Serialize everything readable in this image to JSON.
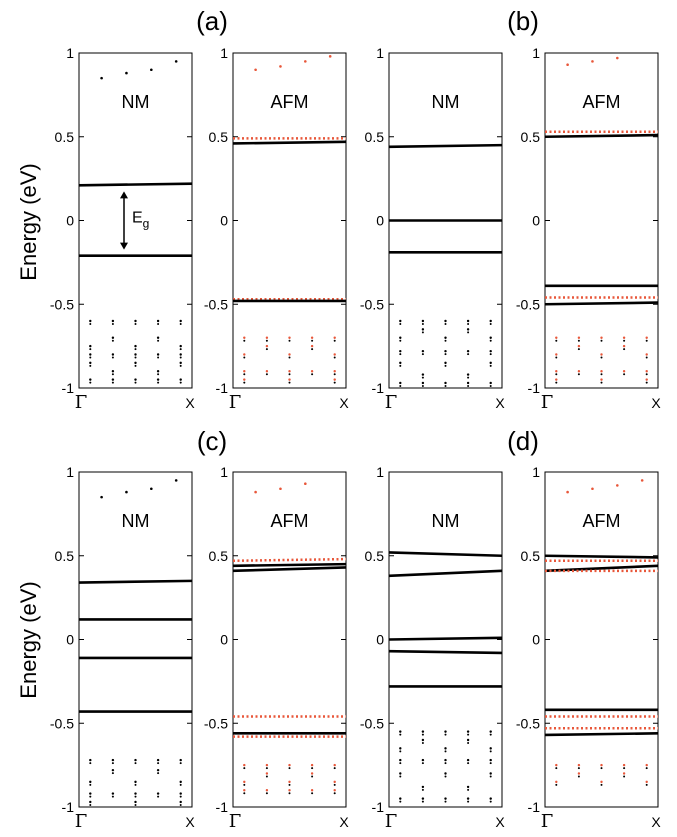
{
  "figure": {
    "ylabel": "Energy (eV)",
    "group_labels": [
      "(a)",
      "(b)",
      "(c)",
      "(d)"
    ],
    "gap_label_main": "E",
    "gap_label_sub": "g"
  },
  "chart_data": [
    {
      "type": "line",
      "group": "(a)",
      "title": "NM",
      "ylim": [
        -1,
        1
      ],
      "xticks": [
        "Γ",
        "X"
      ],
      "yticks": [
        "1",
        "0.5",
        "0",
        "-0.5",
        "-1"
      ],
      "bands": [
        {
          "y": [
            0.21,
            0.22
          ],
          "color": "#000000"
        },
        {
          "y": [
            -0.21,
            -0.21
          ],
          "color": "#000000"
        }
      ],
      "dots": {
        "kx": [
          0.1,
          0.3,
          0.5,
          0.7,
          0.9
        ],
        "y": [
          -0.6,
          -0.7,
          -0.75,
          -0.8,
          -0.85,
          -0.9,
          -0.95
        ],
        "top_y": [
          0.85,
          0.88,
          0.9,
          0.95
        ],
        "color": "#000000"
      },
      "annotation": {
        "text": "Eg",
        "from": 0.21,
        "to": -0.21
      }
    },
    {
      "type": "line",
      "group": "(a)",
      "title": "AFM",
      "ylim": [
        -1,
        1
      ],
      "xticks": [
        "Γ",
        "X"
      ],
      "yticks": [
        "1",
        "0.5",
        "0",
        "-0.5",
        "-1"
      ],
      "bands": [
        {
          "y": [
            0.49,
            0.49
          ],
          "color": "#e8573a",
          "style": "dotted"
        },
        {
          "y": [
            0.46,
            0.47
          ],
          "color": "#000000"
        },
        {
          "y": [
            -0.47,
            -0.47
          ],
          "color": "#e8573a",
          "style": "dotted"
        },
        {
          "y": [
            -0.48,
            -0.48
          ],
          "color": "#000000"
        }
      ],
      "dots": {
        "kx": [
          0.1,
          0.3,
          0.5,
          0.7,
          0.9
        ],
        "y": [
          -0.7,
          -0.75,
          -0.8,
          -0.9,
          -0.95
        ],
        "top_y": [
          0.9,
          0.92,
          0.95,
          0.98
        ],
        "color": "#e8573a"
      }
    },
    {
      "type": "line",
      "group": "(b)",
      "title": "NM",
      "ylim": [
        -1,
        1
      ],
      "xticks": [
        "Γ",
        "X"
      ],
      "yticks": [
        "1",
        "0.5",
        "0",
        "-0.5",
        "-1"
      ],
      "bands": [
        {
          "y": [
            0.44,
            0.45
          ],
          "color": "#000000"
        },
        {
          "y": [
            0.0,
            0.0
          ],
          "color": "#000000"
        },
        {
          "y": [
            -0.19,
            -0.19
          ],
          "color": "#000000"
        }
      ],
      "dots": {
        "kx": [
          0.1,
          0.3,
          0.5,
          0.7,
          0.9
        ],
        "y": [
          -0.6,
          -0.65,
          -0.7,
          -0.78,
          -0.85,
          -0.92,
          -0.97
        ],
        "top_y": [],
        "color": "#000000"
      }
    },
    {
      "type": "line",
      "group": "(b)",
      "title": "AFM",
      "ylim": [
        -1,
        1
      ],
      "xticks": [
        "Γ",
        "X"
      ],
      "yticks": [
        "1",
        "0.5",
        "0",
        "-0.5",
        "-1"
      ],
      "bands": [
        {
          "y": [
            0.53,
            0.53
          ],
          "color": "#e8573a",
          "style": "dotted"
        },
        {
          "y": [
            0.5,
            0.51
          ],
          "color": "#000000"
        },
        {
          "y": [
            -0.39,
            -0.39
          ],
          "color": "#000000"
        },
        {
          "y": [
            -0.46,
            -0.46
          ],
          "color": "#e8573a",
          "style": "dotted"
        },
        {
          "y": [
            -0.5,
            -0.49
          ],
          "color": "#000000"
        }
      ],
      "dots": {
        "kx": [
          0.1,
          0.3,
          0.5,
          0.7,
          0.9
        ],
        "y": [
          -0.7,
          -0.75,
          -0.8,
          -0.9,
          -0.95
        ],
        "top_y": [
          0.93,
          0.95,
          0.97
        ],
        "color": "#e8573a"
      }
    },
    {
      "type": "line",
      "group": "(c)",
      "title": "NM",
      "ylim": [
        -1,
        1
      ],
      "xticks": [
        "Γ",
        "X"
      ],
      "yticks": [
        "1",
        "0.5",
        "0",
        "-0.5",
        "-1"
      ],
      "bands": [
        {
          "y": [
            0.34,
            0.35
          ],
          "color": "#000000"
        },
        {
          "y": [
            0.12,
            0.12
          ],
          "color": "#000000"
        },
        {
          "y": [
            -0.11,
            -0.11
          ],
          "color": "#000000"
        },
        {
          "y": [
            -0.43,
            -0.43
          ],
          "color": "#000000"
        }
      ],
      "dots": {
        "kx": [
          0.1,
          0.3,
          0.5,
          0.7,
          0.9
        ],
        "y": [
          -0.72,
          -0.78,
          -0.85,
          -0.92,
          -0.97
        ],
        "top_y": [
          0.85,
          0.88,
          0.9,
          0.95
        ],
        "color": "#000000"
      }
    },
    {
      "type": "line",
      "group": "(c)",
      "title": "AFM",
      "ylim": [
        -1,
        1
      ],
      "xticks": [
        "Γ",
        "X"
      ],
      "yticks": [
        "1",
        "0.5",
        "0",
        "-0.5",
        "-1"
      ],
      "bands": [
        {
          "y": [
            0.47,
            0.48
          ],
          "color": "#e8573a",
          "style": "dotted"
        },
        {
          "y": [
            0.44,
            0.45
          ],
          "color": "#000000"
        },
        {
          "y": [
            0.41,
            0.43
          ],
          "color": "#000000"
        },
        {
          "y": [
            -0.46,
            -0.46
          ],
          "color": "#e8573a",
          "style": "dotted"
        },
        {
          "y": [
            -0.56,
            -0.56
          ],
          "color": "#000000"
        },
        {
          "y": [
            -0.58,
            -0.58
          ],
          "color": "#e8573a",
          "style": "dotted"
        }
      ],
      "dots": {
        "kx": [
          0.1,
          0.3,
          0.5,
          0.7,
          0.9
        ],
        "y": [
          -0.75,
          -0.8,
          -0.85,
          -0.9
        ],
        "top_y": [
          0.88,
          0.9,
          0.93
        ],
        "color": "#e8573a"
      }
    },
    {
      "type": "line",
      "group": "(d)",
      "title": "NM",
      "ylim": [
        -1,
        1
      ],
      "xticks": [
        "Γ",
        "X"
      ],
      "yticks": [
        "1",
        "0.5",
        "0",
        "-0.5",
        "-1"
      ],
      "bands": [
        {
          "y": [
            0.52,
            0.5
          ],
          "color": "#000000"
        },
        {
          "y": [
            0.38,
            0.41
          ],
          "color": "#000000"
        },
        {
          "y": [
            0.0,
            0.01
          ],
          "color": "#000000"
        },
        {
          "y": [
            -0.07,
            -0.08
          ],
          "color": "#000000"
        },
        {
          "y": [
            -0.28,
            -0.28
          ],
          "color": "#000000"
        }
      ],
      "dots": {
        "kx": [
          0.1,
          0.3,
          0.5,
          0.7,
          0.9
        ],
        "y": [
          -0.55,
          -0.6,
          -0.65,
          -0.72,
          -0.8,
          -0.88,
          -0.95
        ],
        "top_y": [],
        "color": "#000000"
      }
    },
    {
      "type": "line",
      "group": "(d)",
      "title": "AFM",
      "ylim": [
        -1,
        1
      ],
      "xticks": [
        "Γ",
        "X"
      ],
      "yticks": [
        "1",
        "0.5",
        "0",
        "-0.5",
        "-1"
      ],
      "bands": [
        {
          "y": [
            0.5,
            0.49
          ],
          "color": "#000000"
        },
        {
          "y": [
            0.47,
            0.47
          ],
          "color": "#e8573a",
          "style": "dotted"
        },
        {
          "y": [
            0.41,
            0.44
          ],
          "color": "#000000"
        },
        {
          "y": [
            0.41,
            0.41
          ],
          "color": "#e8573a",
          "style": "dotted"
        },
        {
          "y": [
            -0.42,
            -0.42
          ],
          "color": "#000000"
        },
        {
          "y": [
            -0.46,
            -0.46
          ],
          "color": "#e8573a",
          "style": "dotted"
        },
        {
          "y": [
            -0.53,
            -0.53
          ],
          "color": "#e8573a",
          "style": "dotted"
        },
        {
          "y": [
            -0.57,
            -0.56
          ],
          "color": "#000000"
        }
      ],
      "dots": {
        "kx": [
          0.1,
          0.3,
          0.5,
          0.7,
          0.9
        ],
        "y": [
          -0.75,
          -0.8,
          -0.85
        ],
        "top_y": [
          0.88,
          0.9,
          0.92,
          0.95
        ],
        "color": "#e8573a"
      }
    }
  ]
}
